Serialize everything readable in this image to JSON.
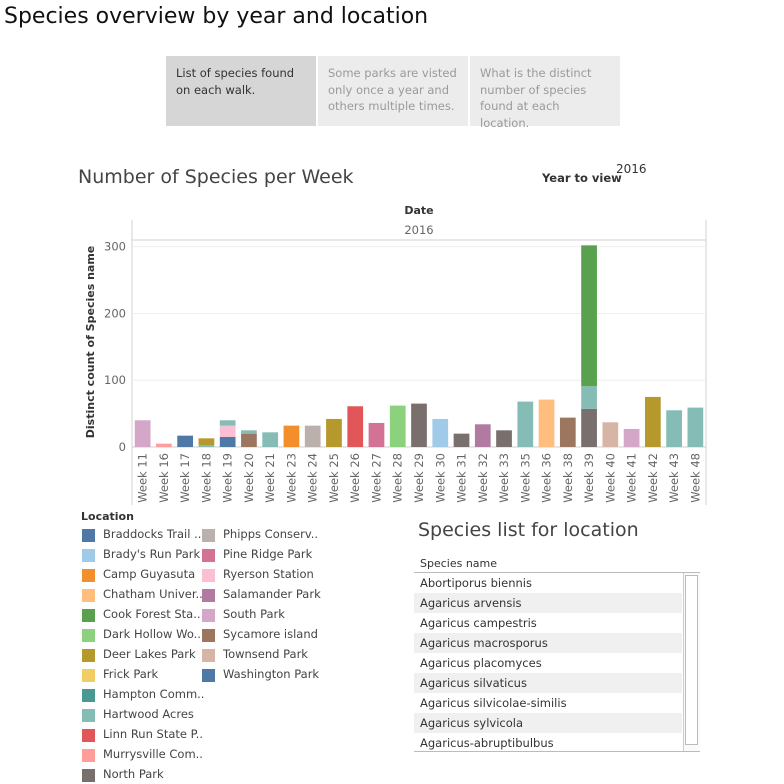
{
  "page_title": "Species overview by year and location",
  "tabs": [
    {
      "label": "List of species found on each walk.",
      "active": true
    },
    {
      "label": "Some parks are visted only once a year and others multiple times.",
      "active": false
    },
    {
      "label": "What is the distinct number of species found at each location.",
      "active": false
    }
  ],
  "year_filter": {
    "label": "Year to view",
    "value": "2016"
  },
  "chart_data": {
    "type": "bar",
    "stacked": true,
    "title": "Number of Species per Week",
    "column_header": "Date",
    "column_value": "2016",
    "ylabel": "Distinct count of Species name",
    "xlabel": "",
    "ylim": [
      0,
      310
    ],
    "yticks": [
      0,
      100,
      200,
      300
    ],
    "grid": true,
    "categories": [
      "Week 11",
      "Week 16",
      "Week 17",
      "Week 18",
      "Week 19",
      "Week 20",
      "Week 21",
      "Week 23",
      "Week 24",
      "Week 25",
      "Week 26",
      "Week 27",
      "Week 28",
      "Week 29",
      "Week 30",
      "Week 31",
      "Week 32",
      "Week 33",
      "Week 35",
      "Week 36",
      "Week 38",
      "Week 39",
      "Week 40",
      "Week 41",
      "Week 42",
      "Week 43",
      "Week 48"
    ],
    "stacks": [
      [
        {
          "location": "South Park",
          "value": 40
        }
      ],
      [
        {
          "location": "Murrysville Com..",
          "value": 5
        }
      ],
      [
        {
          "location": "Washington Park",
          "value": 17
        }
      ],
      [
        {
          "location": "Hartwood Acres",
          "value": 3
        },
        {
          "location": "Deer Lakes Park",
          "value": 10
        }
      ],
      [
        {
          "location": "Washington Park",
          "value": 15
        },
        {
          "location": "Ryerson Station",
          "value": 17
        },
        {
          "location": "Hartwood Acres",
          "value": 8
        }
      ],
      [
        {
          "location": "Sycamore island",
          "value": 20
        },
        {
          "location": "Hartwood Acres",
          "value": 5
        }
      ],
      [
        {
          "location": "Hartwood Acres",
          "value": 22
        }
      ],
      [
        {
          "location": "Camp Guyasuta",
          "value": 32
        }
      ],
      [
        {
          "location": "Phipps Conserv..",
          "value": 32
        }
      ],
      [
        {
          "location": "Deer Lakes Park",
          "value": 42
        }
      ],
      [
        {
          "location": "Linn Run State P..",
          "value": 61
        }
      ],
      [
        {
          "location": "Pine Ridge Park",
          "value": 36
        }
      ],
      [
        {
          "location": "Dark Hollow Wo..",
          "value": 62
        }
      ],
      [
        {
          "location": "North Park",
          "value": 65
        }
      ],
      [
        {
          "location": "Brady's Run Park",
          "value": 42
        }
      ],
      [
        {
          "location": "North Park",
          "value": 20
        }
      ],
      [
        {
          "location": "Salamander Park",
          "value": 34
        }
      ],
      [
        {
          "location": "North Park",
          "value": 25
        }
      ],
      [
        {
          "location": "Hartwood Acres",
          "value": 68
        }
      ],
      [
        {
          "location": "Chatham Univer..",
          "value": 71
        }
      ],
      [
        {
          "location": "Sycamore island",
          "value": 44
        }
      ],
      [
        {
          "location": "North Park",
          "value": 57
        },
        {
          "location": "Hartwood Acres",
          "value": 34
        },
        {
          "location": "Cook Forest Sta..",
          "value": 211
        }
      ],
      [
        {
          "location": "Townsend Park",
          "value": 37
        }
      ],
      [
        {
          "location": "South Park",
          "value": 27
        }
      ],
      [
        {
          "location": "Deer Lakes Park",
          "value": 75
        }
      ],
      [
        {
          "location": "Hartwood Acres",
          "value": 55
        }
      ],
      [
        {
          "location": "Hartwood Acres",
          "value": 59
        }
      ]
    ]
  },
  "legend": {
    "title": "Location",
    "items": [
      {
        "name": "Braddocks Trail ..",
        "color": "#4e79a7"
      },
      {
        "name": "Brady's Run Park",
        "color": "#a0cbe8"
      },
      {
        "name": "Camp Guyasuta",
        "color": "#f28e2b"
      },
      {
        "name": "Chatham Univer..",
        "color": "#ffbe7d"
      },
      {
        "name": "Cook Forest Sta..",
        "color": "#59a14f"
      },
      {
        "name": "Dark Hollow Wo..",
        "color": "#8cd17d"
      },
      {
        "name": "Deer Lakes Park",
        "color": "#b6992d"
      },
      {
        "name": "Frick Park",
        "color": "#f1ce63"
      },
      {
        "name": "Hampton Comm..",
        "color": "#499894"
      },
      {
        "name": "Hartwood Acres",
        "color": "#86bcb6"
      },
      {
        "name": "Linn Run State P..",
        "color": "#e15759"
      },
      {
        "name": "Murrysville Com..",
        "color": "#ff9d9a"
      },
      {
        "name": "North Park",
        "color": "#79706e"
      },
      {
        "name": "Phipps Conserv..",
        "color": "#bab0ac"
      },
      {
        "name": "Pine Ridge Park",
        "color": "#d37295"
      },
      {
        "name": "Ryerson Station",
        "color": "#fabfd2"
      },
      {
        "name": "Salamander Park",
        "color": "#b07aa1"
      },
      {
        "name": "South Park",
        "color": "#d4a6c8"
      },
      {
        "name": "Sycamore island",
        "color": "#9d7660"
      },
      {
        "name": "Townsend Park",
        "color": "#d7b5a6"
      },
      {
        "name": "Washington Park",
        "color": "#4e79a7"
      }
    ]
  },
  "species_list": {
    "title": "Species list for location",
    "column_header": "Species name",
    "rows": [
      "Abortiporus biennis",
      "Agaricus arvensis",
      "Agaricus campestris",
      "Agaricus macrosporus",
      "Agaricus placomyces",
      "Agaricus silvaticus",
      "Agaricus silvicolae-similis",
      "Agaricus sylvicola",
      "Agaricus-abruptibulbus"
    ]
  }
}
